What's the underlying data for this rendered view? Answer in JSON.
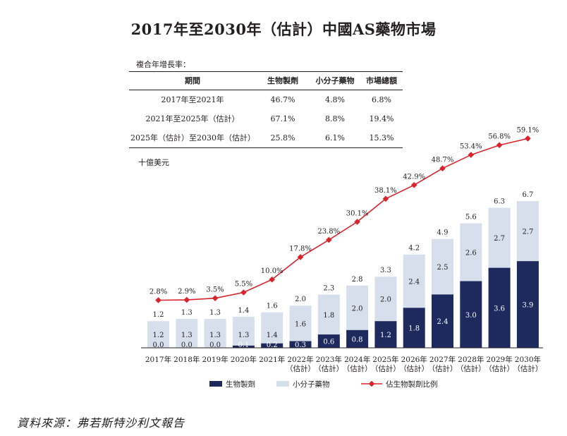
{
  "title": "2017年至2030年（估計）中國AS藥物市場",
  "cagr_table": {
    "caption": "複合年增長率：",
    "headers": [
      "期間",
      "生物製劑",
      "小分子藥物",
      "市場總額"
    ],
    "rows": [
      [
        "2017年至2021年",
        "46.7%",
        "4.8%",
        "6.8%"
      ],
      [
        "2021年至2025年（估計）",
        "67.1%",
        "8.8%",
        "19.4%"
      ],
      [
        "2025年（估計）至2030年（估計）",
        "25.8%",
        "6.1%",
        "15.3%"
      ]
    ]
  },
  "unit_label": "十億美元",
  "source": "資料來源：弗若斯特沙利文報告",
  "colors": {
    "biologics": "#1e2a5e",
    "small_molecule": "#d7dfec",
    "line": "#d9242b"
  },
  "chart_data": {
    "type": "bar",
    "stacked": true,
    "categories": [
      [
        "2017年"
      ],
      [
        "2018年"
      ],
      [
        "2019年"
      ],
      [
        "2020年"
      ],
      [
        "2021年"
      ],
      [
        "2022年",
        "（估計）"
      ],
      [
        "2023年",
        "（估計）"
      ],
      [
        "2024年",
        "（估計）"
      ],
      [
        "2025年",
        "（估計）"
      ],
      [
        "2026年",
        "（估計）"
      ],
      [
        "2027年",
        "（估計）"
      ],
      [
        "2028年",
        "（估計）"
      ],
      [
        "2029年",
        "（估計）"
      ],
      [
        "2030年",
        "（估計）"
      ]
    ],
    "ylabel": "十億美元",
    "series": [
      {
        "name": "生物製劑",
        "values": [
          0.0,
          0.0,
          0.0,
          0.1,
          0.2,
          0.3,
          0.6,
          0.8,
          1.2,
          1.8,
          2.4,
          3.0,
          3.6,
          3.9
        ],
        "labels": [
          "0.0",
          "0.0",
          "0.0",
          "0.1",
          "0.2",
          "0.3",
          "0.6",
          "0.8",
          "1.2",
          "1.8",
          "2.4",
          "3.0",
          "3.6",
          "3.9"
        ]
      },
      {
        "name": "小分子藥物",
        "values": [
          1.2,
          1.3,
          1.3,
          1.3,
          1.4,
          1.6,
          1.8,
          2.0,
          2.0,
          2.4,
          2.5,
          2.6,
          2.7,
          2.7
        ],
        "labels": [
          "1.2",
          "1.3",
          "1.3",
          "1.3",
          "1.4",
          "1.6",
          "1.8",
          "2.0",
          "2.0",
          "2.4",
          "2.5",
          "2.6",
          "2.7",
          "2.7"
        ]
      }
    ],
    "totals": [
      1.2,
      1.3,
      1.3,
      1.4,
      1.6,
      2.0,
      2.3,
      2.8,
      3.3,
      4.2,
      4.9,
      5.6,
      6.3,
      6.7
    ],
    "total_labels": [
      "1.2",
      "1.3",
      "1.3",
      "1.4",
      "1.6",
      "2.0",
      "2.3",
      "2.8",
      "3.3",
      "4.2",
      "4.9",
      "5.6",
      "6.3",
      "6.7"
    ],
    "line": {
      "name": "佔生物製劑比例",
      "values": [
        2.8,
        2.9,
        3.5,
        5.5,
        10.0,
        17.8,
        23.8,
        30.1,
        38.1,
        42.9,
        48.7,
        53.4,
        56.8,
        59.1
      ],
      "labels": [
        "2.8%",
        "2.9%",
        "3.5%",
        "5.5%",
        "10.0%",
        "17.8%",
        "23.8%",
        "30.1%",
        "38.1%",
        "42.9%",
        "48.7%",
        "53.4%",
        "56.8%",
        "59.1%"
      ]
    },
    "legend": {
      "placement": "bottom",
      "entries": [
        "生物製劑",
        "小分子藥物",
        "佔生物製劑比例"
      ]
    }
  }
}
